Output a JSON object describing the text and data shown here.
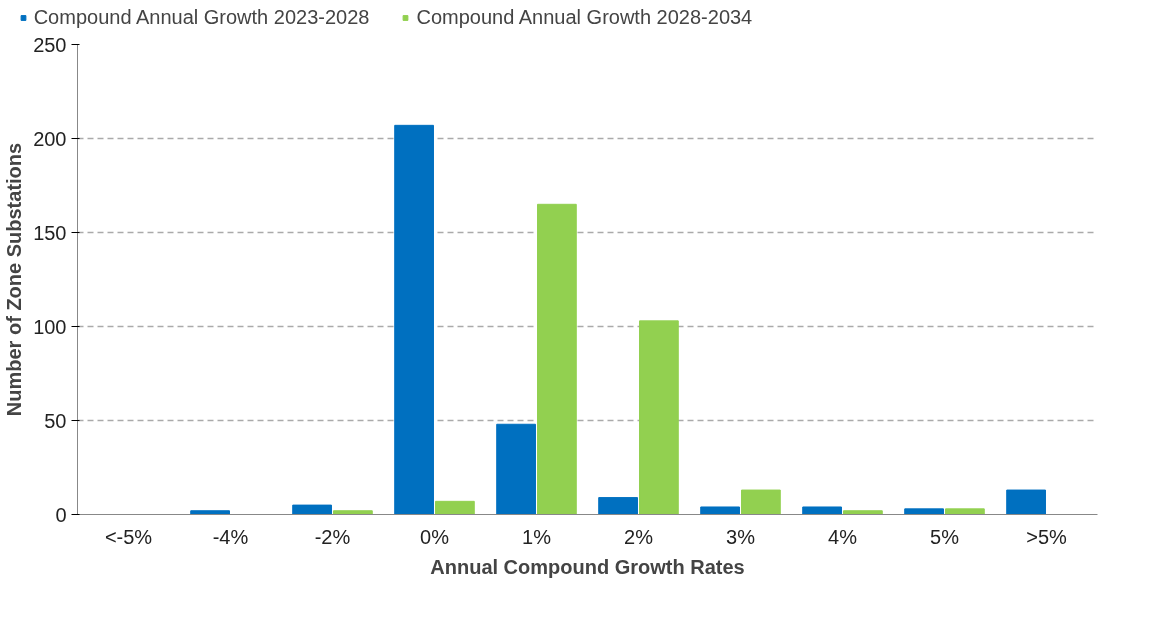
{
  "chart_data": {
    "type": "bar",
    "xlabel": "Annual Compound Growth Rates",
    "ylabel": "Number of Zone Substations",
    "categories": [
      "<-5%",
      "-4%",
      "-2%",
      "0%",
      "1%",
      "2%",
      "3%",
      "4%",
      "5%",
      ">5%"
    ],
    "series": [
      {
        "name": "Compound Annual Growth 2023-2028",
        "color": "#0070c0",
        "values": [
          0,
          2,
          5,
          207,
          48,
          9,
          4,
          4,
          3,
          13
        ]
      },
      {
        "name": "Compound Annual Growth 2028-2034",
        "color": "#92d050",
        "values": [
          0,
          0,
          2,
          7,
          165,
          103,
          13,
          2,
          3,
          0
        ]
      }
    ],
    "ylim": [
      0,
      250
    ],
    "yticks": [
      0,
      50,
      100,
      150,
      200,
      250
    ],
    "grid": "y",
    "legend": "top"
  }
}
